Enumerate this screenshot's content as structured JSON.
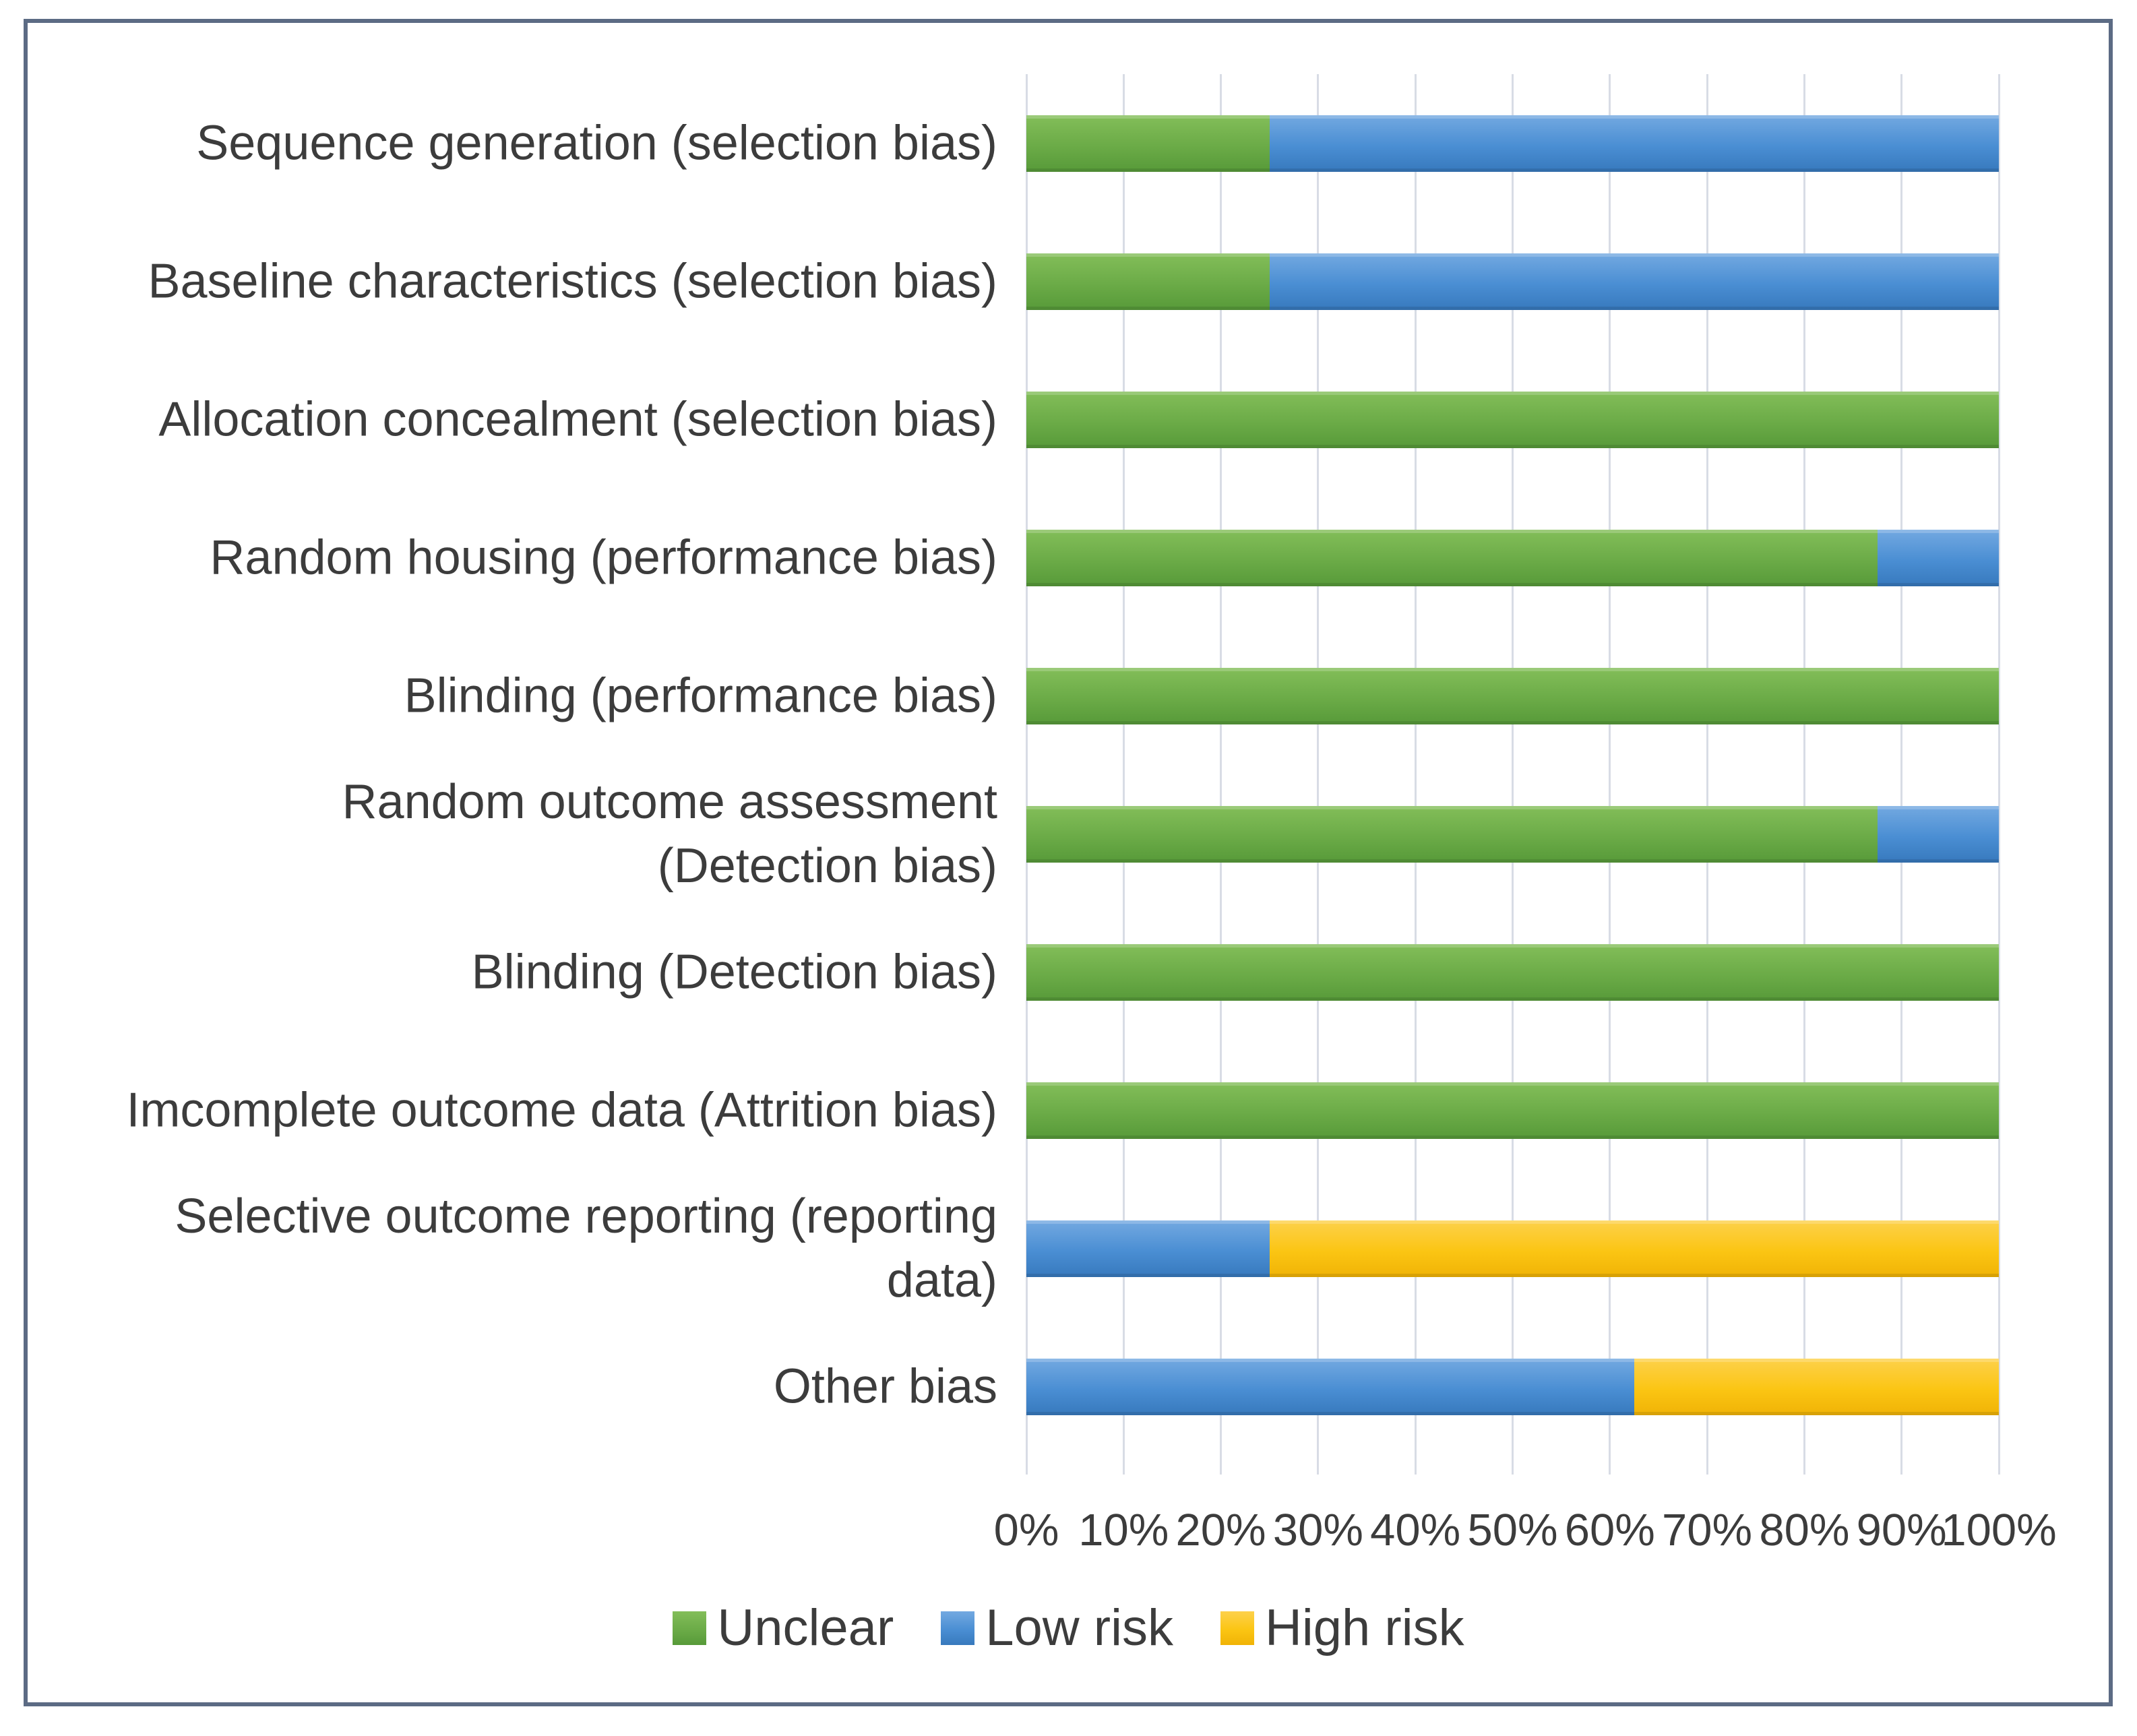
{
  "colors": {
    "frame_border": "#5C6B84",
    "gridline": "#D8DCE5",
    "text": "#3C3C3C",
    "unclear_green": "#6BAB47",
    "low_risk_blue": "#4A8ED3",
    "high_risk_yellow": "#FBC513"
  },
  "chart_data": {
    "type": "bar",
    "orientation": "horizontal",
    "stacked": true,
    "title": "",
    "xlabel": "",
    "ylabel": "",
    "xlim": [
      0,
      100
    ],
    "grid": "vertical",
    "categories": [
      "Sequence generation (selection bias)",
      "Baseline characteristics (selection bias)",
      "Allocation concealment (selection bias)",
      "Random housing (performance bias)",
      "Blinding (performance bias)",
      "Random outcome assessment\n(Detection bias)",
      "Blinding (Detection bias)",
      "Imcomplete outcome data (Attrition bias)",
      "Selective outcome reporting (reporting\ndata)",
      "Other bias"
    ],
    "series": [
      {
        "name": "Unclear",
        "color": "#6BAB47",
        "gradient": {
          "top": "#83BE59",
          "mid": "#6BAB47",
          "bottom": "#579A39"
        },
        "values": [
          25,
          25,
          100,
          87.5,
          100,
          87.5,
          100,
          100,
          0,
          0
        ]
      },
      {
        "name": "Low risk",
        "color": "#4A8ED3",
        "gradient": {
          "top": "#73A9E1",
          "mid": "#4A8ED3",
          "bottom": "#3779BD"
        },
        "values": [
          75,
          75,
          0,
          12.5,
          0,
          12.5,
          0,
          0,
          25,
          62.5
        ]
      },
      {
        "name": "High risk",
        "color": "#FBC513",
        "gradient": {
          "top": "#FDD14B",
          "mid": "#FBC513",
          "bottom": "#F0B306"
        },
        "values": [
          0,
          0,
          0,
          0,
          0,
          0,
          0,
          0,
          75,
          37.5
        ]
      }
    ],
    "x_axis": {
      "ticks": [
        "0%",
        "10%",
        "20%",
        "30%",
        "40%",
        "50%",
        "60%",
        "70%",
        "80%",
        "90%",
        "100%"
      ]
    },
    "legend": {
      "position": "bottom",
      "items": [
        "Unclear",
        "Low risk",
        "High risk"
      ]
    }
  }
}
